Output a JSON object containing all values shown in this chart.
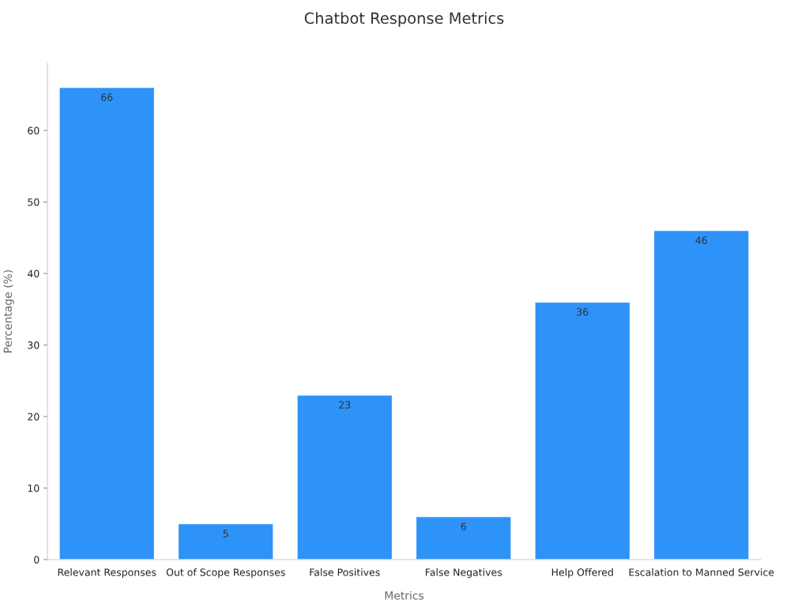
{
  "chart_data": {
    "type": "bar",
    "title": "Chatbot Response Metrics",
    "xlabel": "Metrics",
    "ylabel": "Percentage (%)",
    "categories": [
      "Relevant Responses",
      "Out of Scope Responses",
      "False Positives",
      "False Negatives",
      "Help Offered",
      "Escalation to Manned Service"
    ],
    "values": [
      66,
      5,
      23,
      6,
      36,
      46
    ],
    "color": "#2e93f9",
    "ylim": [
      0,
      69.4
    ],
    "yticks": [
      0,
      10,
      20,
      30,
      40,
      50,
      60
    ],
    "grid": false,
    "legend": false,
    "data_labels": true
  }
}
